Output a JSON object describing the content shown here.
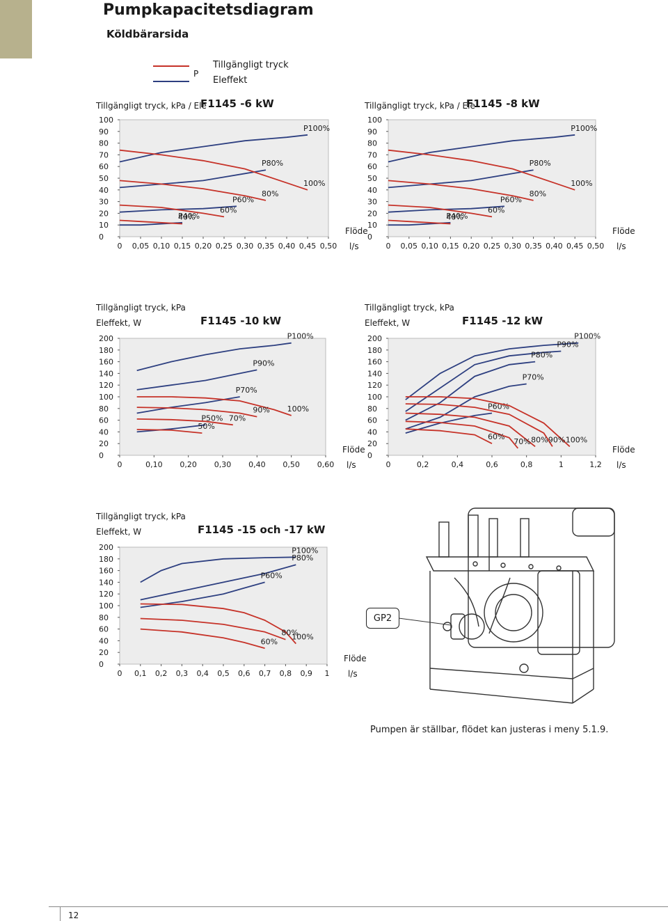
{
  "page": {
    "title": "Pumpkapacitetsdiagram",
    "subtitle": "Köldbärarsida",
    "legend": {
      "p_label": "P",
      "pressure": "Tillgängligt tryck",
      "power": "Eleffekt"
    },
    "caption": "Pumpen är ställbar, flödet kan justeras i meny 5.1.9.",
    "page_number": "12",
    "gp2_label": "GP2",
    "colors": {
      "pressure": "#c63228",
      "power": "#2d3f80",
      "plot_bg": "#ededed",
      "tab": "#b7b18d"
    }
  },
  "chart_data": [
    {
      "type": "line",
      "title": "F1145 -6 kW",
      "ylabel": "Tillgängligt tryck, kPa / Ele",
      "xlabel": "Flöde",
      "xunit": "l/s",
      "xlim": [
        0,
        0.5
      ],
      "ylim": [
        0,
        100
      ],
      "xticks": [
        "0",
        "0,05",
        "0,10",
        "0,15",
        "0,20",
        "0,25",
        "0,30",
        "0,35",
        "0,40",
        "0,45",
        "0,50"
      ],
      "yticks": [
        "0",
        "10",
        "20",
        "30",
        "40",
        "50",
        "60",
        "70",
        "80",
        "90",
        "100"
      ],
      "series": [
        {
          "kind": "power",
          "name": "P100%",
          "x": [
            0.0,
            0.1,
            0.2,
            0.3,
            0.4,
            0.45
          ],
          "y": [
            64,
            72,
            77,
            82,
            85,
            87
          ]
        },
        {
          "kind": "power",
          "name": "P80%",
          "x": [
            0.0,
            0.1,
            0.2,
            0.3,
            0.35
          ],
          "y": [
            42,
            45,
            48,
            54,
            57
          ]
        },
        {
          "kind": "power",
          "name": "P60%",
          "x": [
            0.0,
            0.1,
            0.2,
            0.28
          ],
          "y": [
            21,
            23,
            24,
            26
          ]
        },
        {
          "kind": "power",
          "name": "P40%",
          "x": [
            0.0,
            0.05,
            0.15
          ],
          "y": [
            10,
            10,
            12
          ]
        },
        {
          "kind": "pressure",
          "name": "100%",
          "x": [
            0.0,
            0.1,
            0.2,
            0.3,
            0.4,
            0.45
          ],
          "y": [
            74,
            70,
            65,
            58,
            46,
            40
          ]
        },
        {
          "kind": "pressure",
          "name": "80%",
          "x": [
            0.0,
            0.1,
            0.2,
            0.3,
            0.35
          ],
          "y": [
            48,
            45,
            41,
            35,
            31
          ]
        },
        {
          "kind": "pressure",
          "name": "60%",
          "x": [
            0.0,
            0.1,
            0.2,
            0.25
          ],
          "y": [
            27,
            25,
            20,
            17
          ]
        },
        {
          "kind": "pressure",
          "name": "40%",
          "x": [
            0.0,
            0.05,
            0.15
          ],
          "y": [
            14,
            13,
            11
          ]
        }
      ]
    },
    {
      "type": "line",
      "title": "F1145 -8 kW",
      "ylabel": "Tillgängligt tryck, kPa / Ele",
      "xlabel": "Flöde",
      "xunit": "l/s",
      "xlim": [
        0,
        0.5
      ],
      "ylim": [
        0,
        100
      ],
      "xticks": [
        "0",
        "0,05",
        "0,10",
        "0,15",
        "0,20",
        "0,25",
        "0,30",
        "0,35",
        "0,40",
        "0,45",
        "0,50"
      ],
      "yticks": [
        "0",
        "10",
        "20",
        "30",
        "40",
        "50",
        "60",
        "70",
        "80",
        "90",
        "100"
      ],
      "series": [
        {
          "kind": "power",
          "name": "P100%",
          "x": [
            0.0,
            0.1,
            0.2,
            0.3,
            0.4,
            0.45
          ],
          "y": [
            64,
            72,
            77,
            82,
            85,
            87
          ]
        },
        {
          "kind": "power",
          "name": "P80%",
          "x": [
            0.0,
            0.1,
            0.2,
            0.3,
            0.35
          ],
          "y": [
            42,
            45,
            48,
            54,
            57
          ]
        },
        {
          "kind": "power",
          "name": "P60%",
          "x": [
            0.0,
            0.1,
            0.2,
            0.28
          ],
          "y": [
            21,
            23,
            24,
            26
          ]
        },
        {
          "kind": "power",
          "name": "P40%",
          "x": [
            0.0,
            0.05,
            0.15
          ],
          "y": [
            10,
            10,
            12
          ]
        },
        {
          "kind": "pressure",
          "name": "100%",
          "x": [
            0.0,
            0.1,
            0.2,
            0.3,
            0.4,
            0.45
          ],
          "y": [
            74,
            70,
            65,
            58,
            46,
            40
          ]
        },
        {
          "kind": "pressure",
          "name": "80%",
          "x": [
            0.0,
            0.1,
            0.2,
            0.3,
            0.35
          ],
          "y": [
            48,
            45,
            41,
            35,
            31
          ]
        },
        {
          "kind": "pressure",
          "name": "60%",
          "x": [
            0.0,
            0.1,
            0.2,
            0.25
          ],
          "y": [
            27,
            25,
            20,
            17
          ]
        },
        {
          "kind": "pressure",
          "name": "40%",
          "x": [
            0.0,
            0.05,
            0.15
          ],
          "y": [
            14,
            13,
            11
          ]
        }
      ]
    },
    {
      "type": "line",
      "title": "F1145 -10 kW",
      "ylabel": "Tillgängligt tryck, kPa",
      "ylabel2": "Eleffekt, W",
      "xlabel": "Flöde",
      "xunit": "l/s",
      "xlim": [
        0,
        0.6
      ],
      "ylim": [
        0,
        200
      ],
      "xticks": [
        "0",
        "0,10",
        "0,20",
        "0,30",
        "0,40",
        "0,50",
        "0,60"
      ],
      "yticks": [
        "0",
        "20",
        "40",
        "60",
        "80",
        "100",
        "120",
        "140",
        "160",
        "180",
        "200"
      ],
      "series": [
        {
          "kind": "power",
          "name": "P100%",
          "x": [
            0.05,
            0.15,
            0.25,
            0.35,
            0.45,
            0.5
          ],
          "y": [
            145,
            160,
            172,
            182,
            188,
            192
          ]
        },
        {
          "kind": "power",
          "name": "P90%",
          "x": [
            0.05,
            0.15,
            0.25,
            0.35,
            0.4
          ],
          "y": [
            112,
            120,
            128,
            140,
            146
          ]
        },
        {
          "kind": "power",
          "name": "P70%",
          "x": [
            0.05,
            0.15,
            0.25,
            0.35
          ],
          "y": [
            72,
            82,
            90,
            100
          ]
        },
        {
          "kind": "power",
          "name": "P50%",
          "x": [
            0.05,
            0.15,
            0.25
          ],
          "y": [
            40,
            45,
            52
          ]
        },
        {
          "kind": "pressure",
          "name": "100%",
          "x": [
            0.05,
            0.15,
            0.25,
            0.35,
            0.45,
            0.5
          ],
          "y": [
            100,
            100,
            98,
            93,
            78,
            68
          ]
        },
        {
          "kind": "pressure",
          "name": "90%",
          "x": [
            0.05,
            0.15,
            0.25,
            0.35,
            0.4
          ],
          "y": [
            82,
            81,
            78,
            72,
            66
          ]
        },
        {
          "kind": "pressure",
          "name": "70%",
          "x": [
            0.05,
            0.15,
            0.25,
            0.33
          ],
          "y": [
            62,
            61,
            58,
            52
          ]
        },
        {
          "kind": "pressure",
          "name": "50%",
          "x": [
            0.05,
            0.15,
            0.24
          ],
          "y": [
            44,
            43,
            38
          ]
        }
      ]
    },
    {
      "type": "line",
      "title": "F1145 -12 kW",
      "ylabel": "Tillgängligt tryck, kPa",
      "ylabel2": "Eleffekt, W",
      "xlabel": "Flöde",
      "xunit": "l/s",
      "xlim": [
        0,
        1.2
      ],
      "ylim": [
        0,
        200
      ],
      "xticks": [
        "0",
        "0,2",
        "0,4",
        "0,6",
        "0,8",
        "1",
        "1,2"
      ],
      "yticks": [
        "0",
        "20",
        "40",
        "60",
        "80",
        "100",
        "120",
        "140",
        "160",
        "180",
        "200"
      ],
      "series": [
        {
          "kind": "power",
          "name": "P100%",
          "x": [
            0.1,
            0.3,
            0.5,
            0.7,
            0.9,
            1.1
          ],
          "y": [
            95,
            140,
            170,
            182,
            188,
            192
          ]
        },
        {
          "kind": "power",
          "name": "P90%",
          "x": [
            0.1,
            0.3,
            0.5,
            0.7,
            0.9,
            1.0
          ],
          "y": [
            75,
            115,
            155,
            170,
            176,
            178
          ]
        },
        {
          "kind": "power",
          "name": "P80%",
          "x": [
            0.1,
            0.3,
            0.5,
            0.7,
            0.85
          ],
          "y": [
            60,
            90,
            135,
            155,
            160
          ]
        },
        {
          "kind": "power",
          "name": "P70%",
          "x": [
            0.1,
            0.3,
            0.5,
            0.7,
            0.8
          ],
          "y": [
            45,
            65,
            100,
            118,
            122
          ]
        },
        {
          "kind": "power",
          "name": "P60%",
          "x": [
            0.1,
            0.3,
            0.5,
            0.6
          ],
          "y": [
            38,
            55,
            68,
            72
          ]
        },
        {
          "kind": "pressure",
          "name": "100%",
          "x": [
            0.1,
            0.3,
            0.5,
            0.7,
            0.9,
            1.05
          ],
          "y": [
            100,
            100,
            97,
            85,
            55,
            15
          ]
        },
        {
          "kind": "pressure",
          "name": "90%",
          "x": [
            0.1,
            0.3,
            0.5,
            0.7,
            0.9,
            0.95
          ],
          "y": [
            88,
            87,
            82,
            70,
            38,
            15
          ]
        },
        {
          "kind": "pressure",
          "name": "80%",
          "x": [
            0.1,
            0.3,
            0.5,
            0.7,
            0.85
          ],
          "y": [
            72,
            70,
            65,
            50,
            15
          ]
        },
        {
          "kind": "pressure",
          "name": "70%",
          "x": [
            0.1,
            0.3,
            0.5,
            0.7,
            0.75
          ],
          "y": [
            58,
            56,
            50,
            30,
            12
          ]
        },
        {
          "kind": "pressure",
          "name": "60%",
          "x": [
            0.1,
            0.3,
            0.5,
            0.6
          ],
          "y": [
            45,
            42,
            35,
            20
          ]
        }
      ]
    },
    {
      "type": "line",
      "title": "F1145 -15 och -17 kW",
      "ylabel": "Tillgängligt tryck, kPa",
      "ylabel2": "Eleffekt, W",
      "xlabel": "Flöde",
      "xunit": "l/s",
      "xlim": [
        0,
        1.0
      ],
      "ylim": [
        0,
        200
      ],
      "xticks": [
        "0",
        "0,1",
        "0,2",
        "0,3",
        "0,4",
        "0,5",
        "0,6",
        "0,7",
        "0,8",
        "0,9",
        "1"
      ],
      "yticks": [
        "0",
        "20",
        "40",
        "60",
        "80",
        "100",
        "120",
        "140",
        "160",
        "180",
        "200"
      ],
      "series": [
        {
          "kind": "power",
          "name": "P100%",
          "x": [
            0.1,
            0.2,
            0.3,
            0.5,
            0.7,
            0.85
          ],
          "y": [
            140,
            160,
            172,
            180,
            182,
            183
          ]
        },
        {
          "kind": "power",
          "name": "P80%",
          "x": [
            0.1,
            0.3,
            0.5,
            0.7,
            0.85
          ],
          "y": [
            110,
            125,
            140,
            155,
            170
          ]
        },
        {
          "kind": "power",
          "name": "P60%",
          "x": [
            0.1,
            0.3,
            0.5,
            0.6,
            0.7
          ],
          "y": [
            97,
            107,
            120,
            130,
            140
          ]
        },
        {
          "kind": "pressure",
          "name": "100%",
          "x": [
            0.1,
            0.3,
            0.5,
            0.6,
            0.7,
            0.8,
            0.85
          ],
          "y": [
            103,
            102,
            95,
            88,
            75,
            55,
            35
          ]
        },
        {
          "kind": "pressure",
          "name": "80%",
          "x": [
            0.1,
            0.3,
            0.5,
            0.7,
            0.8
          ],
          "y": [
            78,
            75,
            68,
            55,
            42
          ]
        },
        {
          "kind": "pressure",
          "name": "60%",
          "x": [
            0.1,
            0.3,
            0.5,
            0.6,
            0.7
          ],
          "y": [
            60,
            55,
            45,
            37,
            27
          ]
        }
      ]
    }
  ]
}
